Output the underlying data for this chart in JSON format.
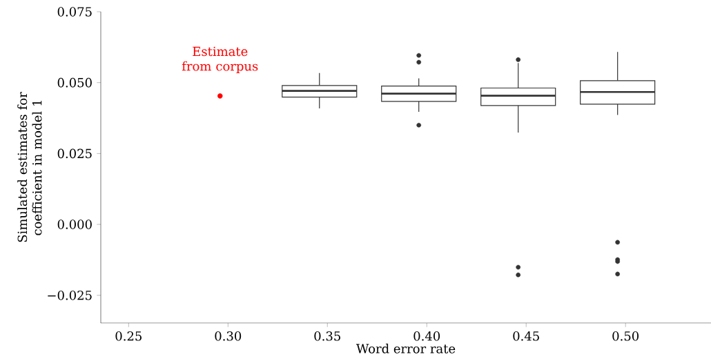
{
  "chart_data": {
    "type": "box",
    "xlabel": "Word error rate",
    "ylabel": "Simulated estimates for coefficient in model 1",
    "color": "#333333",
    "x": [
      0.346,
      0.396,
      0.446,
      0.496
    ],
    "boxes": [
      {
        "low": 0.0409,
        "q1": 0.0449,
        "median": 0.0471,
        "q3": 0.049,
        "high": 0.0534
      },
      {
        "low": 0.0397,
        "q1": 0.0434,
        "median": 0.0461,
        "q3": 0.0488,
        "high": 0.0515,
        "outliers": [
          0.0596,
          0.0572,
          0.035
        ]
      },
      {
        "low": 0.0324,
        "q1": 0.0419,
        "median": 0.0454,
        "q3": 0.0481,
        "high": 0.0569,
        "outliers": [
          0.0581,
          -0.0151,
          -0.0178
        ]
      },
      {
        "low": 0.0386,
        "q1": 0.0424,
        "median": 0.0467,
        "q3": 0.0507,
        "high": 0.0608,
        "outliers": [
          -0.0063,
          -0.0124,
          -0.0131,
          -0.0175
        ]
      }
    ],
    "series": [
      {
        "type": "scatter",
        "color": "#ff0000",
        "x": [
          0.296
        ],
        "values": [
          0.0453
        ]
      }
    ],
    "annotations": [
      {
        "text": "Estimate from corpus",
        "x": 0.296,
        "y": 0.0453
      }
    ],
    "xlim": [
      0.236,
      0.543
    ],
    "ylim": [
      -0.0348,
      0.075
    ],
    "xticks": [
      0.25,
      {
        "value": 0.3,
        "label": "0.30"
      },
      0.35,
      {
        "value": 0.4,
        "label": "0.40"
      },
      0.45,
      {
        "value": 0.5,
        "label": "0.50"
      }
    ],
    "yticks": [
      {
        "value": -0.025,
        "label": "−0.025"
      },
      {
        "value": 0,
        "label": "0.000"
      },
      0.025,
      {
        "value": 0.05,
        "label": "0.050"
      },
      0.075
    ]
  }
}
